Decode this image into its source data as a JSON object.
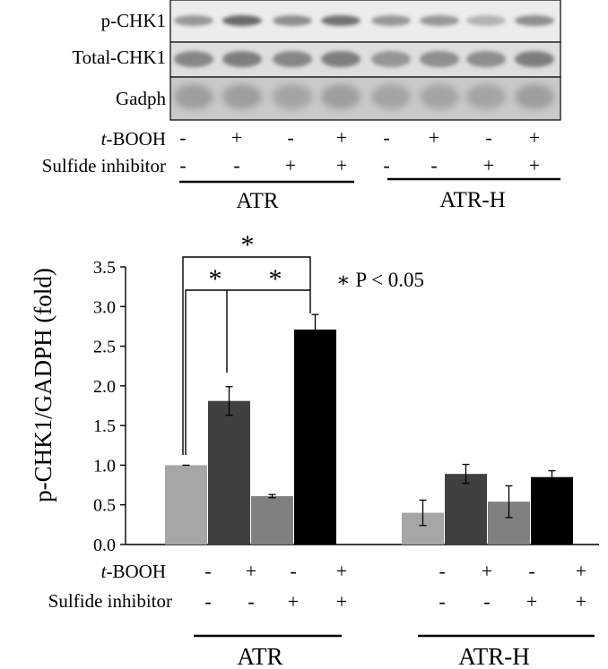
{
  "blot": {
    "rows": [
      {
        "label": "p-CHK1"
      },
      {
        "label": "Total-CHK1"
      },
      {
        "label": "Gadph"
      }
    ],
    "lane_count": 8
  },
  "conditions": {
    "row1_label_italic": "t",
    "row1_label_rest": "-BOOH",
    "row2_label": "Sulfide inhibitor",
    "top_row1": [
      "-",
      "+",
      "-",
      "+",
      "-",
      "+",
      "-",
      "+"
    ],
    "top_row2": [
      "-",
      "-",
      "+",
      "+",
      "-",
      "-",
      "+",
      "+"
    ],
    "bottom_row1": [
      "-",
      "+",
      "-",
      "+",
      "-",
      "+",
      "-",
      "+"
    ],
    "bottom_row2": [
      "-",
      "-",
      "+",
      "+",
      "-",
      "-",
      "+",
      "+"
    ]
  },
  "groups": [
    "ATR",
    "ATR-H"
  ],
  "significance": {
    "marks": [
      "*",
      "*",
      "*"
    ],
    "legend": "∗ P < 0.05"
  },
  "colors": {
    "bar_light": "#a6a6a6",
    "bar_dark": "#404040",
    "bar_mid": "#808080",
    "bar_black": "#000000"
  },
  "chart_data": {
    "type": "bar",
    "ylabel": "p-CHK1/GADPH (fold)",
    "xlabel": "",
    "ylim": [
      0,
      3.5
    ],
    "yticks": [
      "0.0",
      "0.5",
      "1.0",
      "1.5",
      "2.0",
      "2.5",
      "3.0",
      "3.5"
    ],
    "grid": false,
    "groups": [
      "ATR",
      "ATR-H"
    ],
    "bars": [
      {
        "group": "ATR",
        "tBOOH": "-",
        "inhibitor": "-",
        "value": 1.0,
        "error": 0.0,
        "color": "#a6a6a6"
      },
      {
        "group": "ATR",
        "tBOOH": "+",
        "inhibitor": "-",
        "value": 1.81,
        "error": 0.18,
        "color": "#404040"
      },
      {
        "group": "ATR",
        "tBOOH": "-",
        "inhibitor": "+",
        "value": 0.61,
        "error": 0.02,
        "color": "#808080"
      },
      {
        "group": "ATR",
        "tBOOH": "+",
        "inhibitor": "+",
        "value": 2.71,
        "error": 0.19,
        "color": "#000000"
      },
      {
        "group": "ATR-H",
        "tBOOH": "-",
        "inhibitor": "-",
        "value": 0.4,
        "error": 0.16,
        "color": "#a6a6a6"
      },
      {
        "group": "ATR-H",
        "tBOOH": "+",
        "inhibitor": "-",
        "value": 0.89,
        "error": 0.12,
        "color": "#404040"
      },
      {
        "group": "ATR-H",
        "tBOOH": "-",
        "inhibitor": "+",
        "value": 0.54,
        "error": 0.2,
        "color": "#808080"
      },
      {
        "group": "ATR-H",
        "tBOOH": "+",
        "inhibitor": "+",
        "value": 0.85,
        "error": 0.08,
        "color": "#000000"
      }
    ]
  }
}
